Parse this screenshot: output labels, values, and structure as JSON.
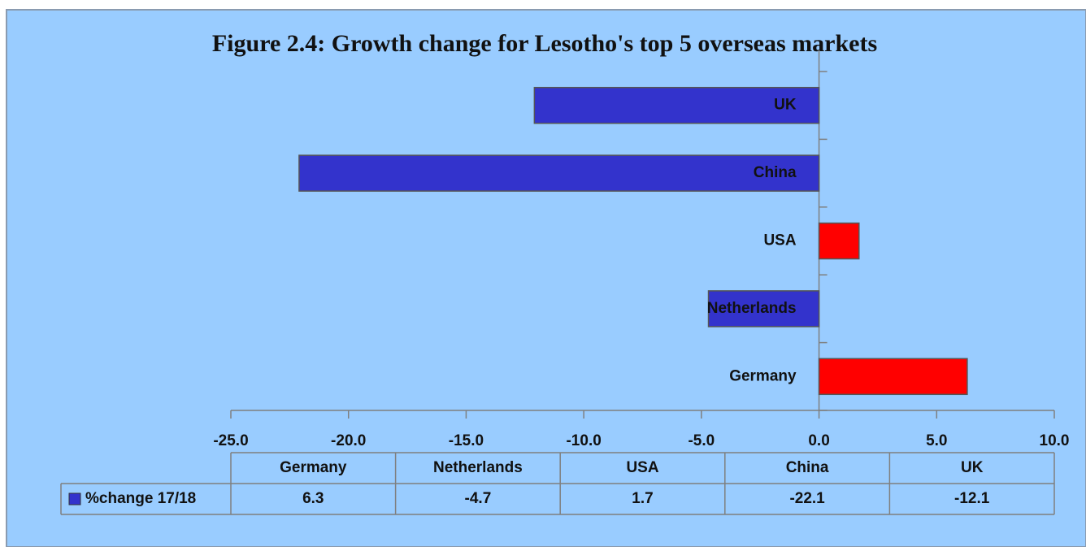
{
  "chart_data": {
    "type": "bar",
    "orientation": "horizontal",
    "title": "Figure 2.4: Growth change for Lesotho's top 5 overseas markets",
    "categories": [
      "Germany",
      "Netherlands",
      "USA",
      "China",
      "UK"
    ],
    "series": [
      {
        "name": "%change 17/18",
        "color": "#3333cc",
        "colors": [
          "#ff0000",
          "#3333cc",
          "#ff0000",
          "#3333cc",
          "#3333cc"
        ],
        "values": [
          6.3,
          -4.7,
          1.7,
          -22.1,
          -12.1
        ]
      }
    ],
    "xlim": [
      -25,
      10
    ],
    "xticks": [
      {
        "value": -25,
        "label": "-25.0"
      },
      {
        "value": -20,
        "label": "-20.0"
      },
      {
        "value": -15,
        "label": "-15.0"
      },
      {
        "value": -10,
        "label": "-10.0"
      },
      {
        "value": -5,
        "label": "-5.0"
      },
      {
        "value": 0,
        "label": "0.0"
      },
      {
        "value": 5,
        "label": "5.0"
      },
      {
        "value": 10,
        "label": "10.0"
      }
    ],
    "data_table": true
  }
}
